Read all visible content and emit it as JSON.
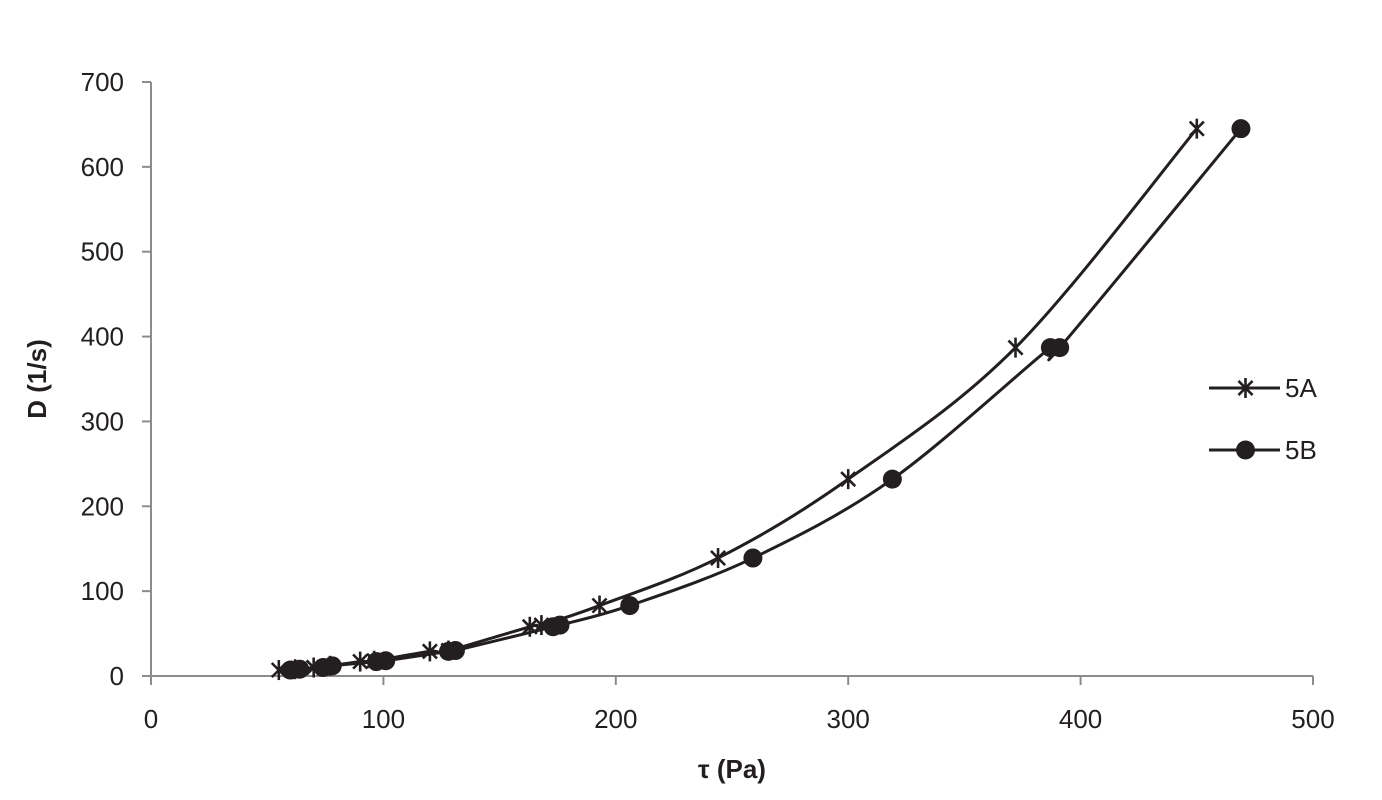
{
  "chart_data": {
    "type": "scatter",
    "xlabel": "τ (Pa)",
    "ylabel": "D (1/s)",
    "xlim": [
      0,
      500
    ],
    "ylim": [
      0,
      700
    ],
    "x_ticks": [
      0,
      100,
      200,
      300,
      400,
      500
    ],
    "y_ticks": [
      0,
      100,
      200,
      300,
      400,
      500,
      600,
      700
    ],
    "grid": false,
    "legend_position": "right",
    "colors": {
      "line": "#231f20",
      "axis": "#8c8c8c"
    },
    "series": [
      {
        "name": "5A",
        "marker": "asterisk",
        "points": [
          [
            55,
            7
          ],
          [
            62,
            8
          ],
          [
            70,
            10
          ],
          [
            77,
            12
          ],
          [
            90,
            17
          ],
          [
            96,
            18
          ],
          [
            120,
            29
          ],
          [
            128,
            30
          ],
          [
            163,
            58
          ],
          [
            168,
            60
          ],
          [
            193,
            83
          ],
          [
            244,
            139
          ],
          [
            300,
            232
          ],
          [
            372,
            387
          ],
          [
            450,
            645
          ]
        ]
      },
      {
        "name": "5B",
        "marker": "circle",
        "points": [
          [
            60,
            7
          ],
          [
            64,
            8
          ],
          [
            74,
            10
          ],
          [
            78,
            12
          ],
          [
            97,
            17
          ],
          [
            101,
            18
          ],
          [
            128,
            29
          ],
          [
            131,
            30
          ],
          [
            173,
            58
          ],
          [
            176,
            60
          ],
          [
            206,
            83
          ],
          [
            259,
            139
          ],
          [
            319,
            232
          ],
          [
            387,
            387
          ],
          [
            391,
            387
          ],
          [
            469,
            645
          ]
        ]
      }
    ]
  }
}
